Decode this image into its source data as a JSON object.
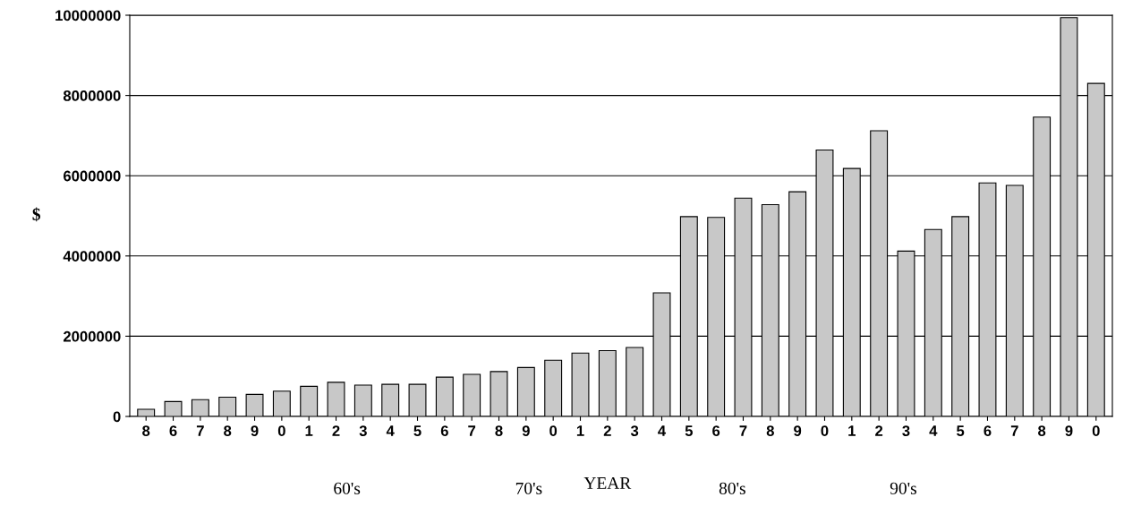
{
  "chart_data": {
    "type": "bar",
    "ylabel": "$",
    "xlabel": "YEAR",
    "categories": [
      "8",
      "6",
      "7",
      "8",
      "9",
      "0",
      "1",
      "2",
      "3",
      "4",
      "5",
      "6",
      "7",
      "8",
      "9",
      "0",
      "1",
      "2",
      "3",
      "4",
      "5",
      "6",
      "7",
      "8",
      "9",
      "0",
      "1",
      "2",
      "3",
      "4",
      "5",
      "6",
      "7",
      "8",
      "9",
      "0"
    ],
    "values": [
      180000,
      370000,
      420000,
      480000,
      550000,
      630000,
      750000,
      850000,
      780000,
      800000,
      800000,
      980000,
      1050000,
      1120000,
      1220000,
      1400000,
      1580000,
      1640000,
      1720000,
      3080000,
      4980000,
      4960000,
      5440000,
      5280000,
      5600000,
      6640000,
      6180000,
      7120000,
      4120000,
      4660000,
      4980000,
      5820000,
      5760000,
      7460000,
      9940000,
      8300000
    ],
    "color": "#c8c8c8",
    "ylim": [
      0,
      10000000
    ],
    "yticks": [
      0,
      2000000,
      4000000,
      6000000,
      8000000,
      10000000
    ],
    "grid": "y",
    "annotations": [
      "60's",
      "70's",
      "80's",
      "90's"
    ]
  }
}
